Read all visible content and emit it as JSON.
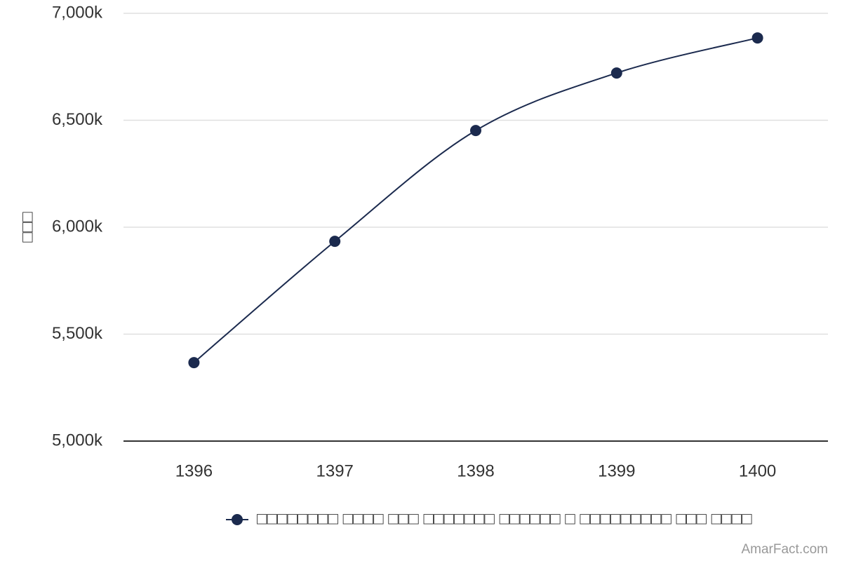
{
  "chart_data": {
    "type": "line",
    "y_label": "□□□",
    "categories": [
      "1396",
      "1397",
      "1398",
      "1399",
      "1400"
    ],
    "series": [
      {
        "name": "□□□□□□□□ □□□□ □□□ □□□□□□□ □□□□□□ □ □□□□□□□□□ □□□ □□□□",
        "color": "#1b2a4e",
        "values": [
          5367000,
          5934000,
          6452000,
          6721000,
          6885000
        ]
      }
    ],
    "ylim": [
      5000000,
      7000000
    ],
    "yticks": [
      {
        "value": 5000000,
        "label": "5,000k"
      },
      {
        "value": 5500000,
        "label": "5,500k"
      },
      {
        "value": 6000000,
        "label": "6,000k"
      },
      {
        "value": 6500000,
        "label": "6,500k"
      },
      {
        "value": 7000000,
        "label": "7,000k"
      }
    ],
    "grid": true,
    "credit": "AmarFact.com"
  }
}
